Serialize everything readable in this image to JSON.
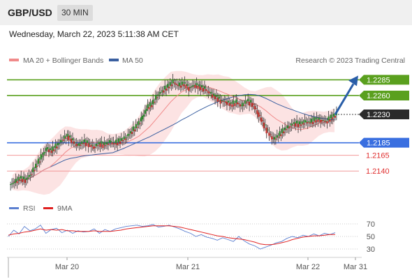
{
  "header": {
    "symbol": "GBP/USD",
    "timeframe": "30 MIN"
  },
  "datetime": "Wednesday, March 22, 2023 5:11:38 AM CET",
  "legend": {
    "items": [
      {
        "label": "MA 20 + Bollinger Bands",
        "color": "#f08a8a"
      },
      {
        "label": "MA 50",
        "color": "#3a5fa0"
      }
    ],
    "copyright": "Research © 2023 Trading Central"
  },
  "rsi_legend": {
    "items": [
      {
        "label": "RSI",
        "color": "#5b7fd0"
      },
      {
        "label": "9MA",
        "color": "#e02020"
      }
    ]
  },
  "chart_data": [
    {
      "type": "candlestick",
      "title": "",
      "xlabel": "",
      "ylabel": "",
      "x_ticks": [
        "Mar 20",
        "Mar 21",
        "Mar 22",
        "Mar 31"
      ],
      "ylim": [
        1.2107,
        1.2301
      ],
      "current_price": 1.223,
      "levels": [
        {
          "label": "1.2285",
          "value": 1.2285,
          "kind": "resistance",
          "color": "#5aa01e"
        },
        {
          "label": "1.2260",
          "value": 1.226,
          "kind": "resistance",
          "color": "#5aa01e"
        },
        {
          "label": "1.2230",
          "value": 1.223,
          "kind": "current",
          "color": "#2a2a2a"
        },
        {
          "label": "1.2185",
          "value": 1.2185,
          "kind": "pivot",
          "color": "#3a6fe0"
        },
        {
          "label": "1.2165",
          "value": 1.2165,
          "kind": "support",
          "color": "#e03030"
        },
        {
          "label": "1.2140",
          "value": 1.214,
          "kind": "support",
          "color": "#e03030"
        }
      ],
      "forecast_arrow": {
        "from": 1.223,
        "to": 1.2285
      },
      "series": [
        {
          "name": "MA 20 + Bollinger Bands"
        },
        {
          "name": "MA 50"
        }
      ],
      "close_path": [
        1.2122,
        1.2128,
        1.2126,
        1.2135,
        1.2148,
        1.2162,
        1.2175,
        1.2172,
        1.2181,
        1.219,
        1.2196,
        1.2187,
        1.218,
        1.2186,
        1.2183,
        1.2178,
        1.2184,
        1.2181,
        1.2186,
        1.2184,
        1.2188,
        1.2193,
        1.2202,
        1.221,
        1.2222,
        1.224,
        1.2246,
        1.2261,
        1.2268,
        1.2274,
        1.2281,
        1.2275,
        1.2279,
        1.2272,
        1.2277,
        1.2274,
        1.227,
        1.2263,
        1.2258,
        1.2252,
        1.225,
        1.2246,
        1.2249,
        1.2243,
        1.2251,
        1.2247,
        1.2233,
        1.2217,
        1.2201,
        1.219,
        1.2196,
        1.2205,
        1.2211,
        1.2216,
        1.2214,
        1.2218,
        1.2217,
        1.2222,
        1.2221,
        1.2219,
        1.2225,
        1.223
      ]
    },
    {
      "type": "line",
      "title": "",
      "y_ticks": [
        70,
        50,
        30
      ],
      "ylim": [
        20,
        80
      ],
      "series": [
        {
          "name": "RSI",
          "values": [
            50,
            60,
            54,
            66,
            59,
            62,
            68,
            55,
            61,
            63,
            56,
            60,
            55,
            59,
            57,
            58,
            62,
            55,
            61,
            58,
            62,
            64,
            66,
            67,
            68,
            66,
            67,
            69,
            65,
            66,
            68,
            65,
            62,
            58,
            55,
            50,
            53,
            49,
            47,
            44,
            48,
            45,
            42,
            50,
            43,
            38,
            35,
            30,
            33,
            36,
            40,
            42,
            47,
            50,
            48,
            52,
            50,
            54,
            51,
            55,
            53,
            56
          ]
        },
        {
          "name": "9MA",
          "values": [
            52,
            54,
            55,
            57,
            58,
            60,
            62,
            60,
            61,
            60,
            61,
            59,
            59,
            58,
            58,
            58,
            59,
            58,
            58,
            58,
            59,
            60,
            62,
            63,
            64,
            65,
            66,
            67,
            67,
            67,
            67,
            66,
            65,
            63,
            61,
            59,
            57,
            55,
            53,
            51,
            50,
            48,
            47,
            46,
            45,
            43,
            41,
            38,
            37,
            37,
            38,
            40,
            42,
            45,
            47,
            49,
            50,
            51,
            51,
            52,
            53,
            53
          ]
        }
      ]
    }
  ]
}
